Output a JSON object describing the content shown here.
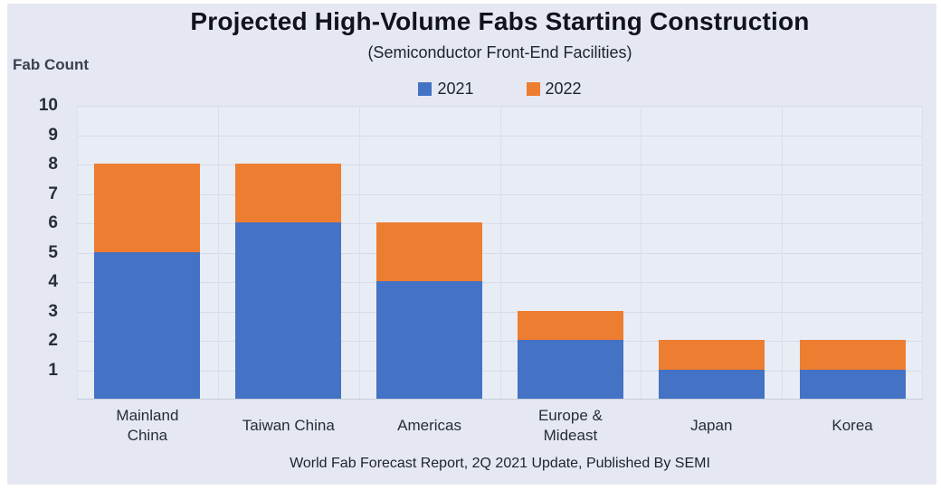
{
  "title": "Projected High-Volume Fabs Starting Construction",
  "subtitle": "(Semiconductor Front-End Facilities)",
  "y_axis_label": "Fab Count",
  "source_note": "World Fab Forecast Report, 2Q 2021 Update, Published By SEMI",
  "colors": {
    "series_2021": "#4472c4",
    "series_2022": "#ed7d31",
    "background": "#e5e8f2",
    "plot_background": "#e8ecf5",
    "gridline": "#d6dbe7",
    "title_text": "#10121c"
  },
  "chart_data": {
    "type": "bar",
    "stacked": true,
    "title": "Projected High-Volume Fabs Starting Construction",
    "subtitle": "(Semiconductor Front-End Facilities)",
    "xlabel": "",
    "ylabel": "Fab Count",
    "ylim": [
      0,
      10
    ],
    "yticks": [
      1,
      2,
      3,
      4,
      5,
      6,
      7,
      8,
      9,
      10
    ],
    "grid": true,
    "legend_position": "top",
    "categories": [
      "Mainland China",
      "Taiwan China",
      "Americas",
      "Europe & Mideast",
      "Japan",
      "Korea"
    ],
    "series": [
      {
        "name": "2021",
        "color": "#4472c4",
        "values": [
          5,
          6,
          4,
          2,
          1,
          1
        ]
      },
      {
        "name": "2022",
        "color": "#ed7d31",
        "values": [
          3,
          2,
          2,
          1,
          1,
          1
        ]
      }
    ],
    "totals": [
      8,
      8,
      6,
      3,
      2,
      2
    ]
  }
}
